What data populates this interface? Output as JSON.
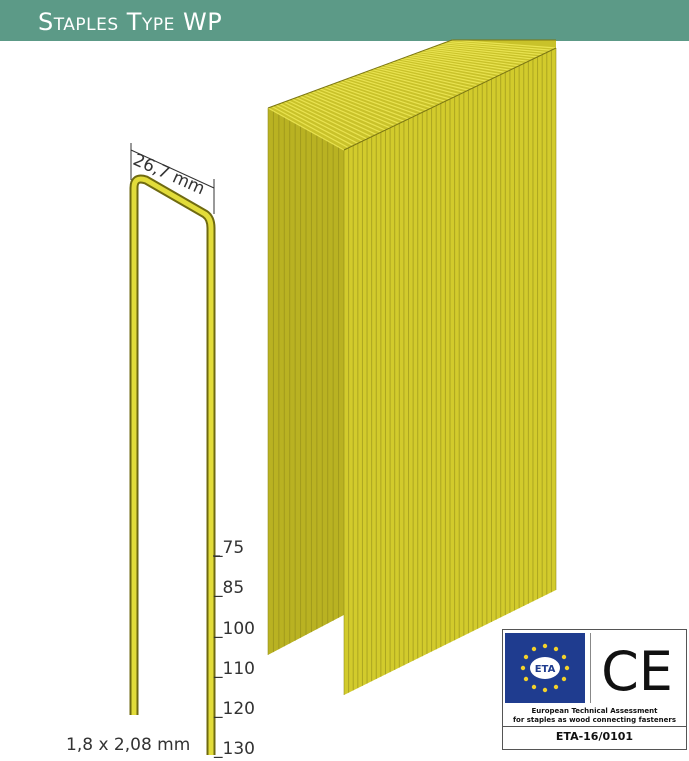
{
  "header": {
    "title": "Staples Type WP",
    "background_color": "#5c9a87"
  },
  "staple": {
    "crown_width": "26,7 mm",
    "wire_size": "1,8 x 2,08 mm",
    "lengths": [
      "_75",
      "_85",
      "_100",
      "_110",
      "_120",
      "_130"
    ],
    "color": "#d6d02a"
  },
  "certification": {
    "logo_text": "ETA",
    "mark": "CE",
    "line1": "European Technical Assessment",
    "line2": "for staples as wood connecting fasteners",
    "number": "ETA-16/0101"
  }
}
